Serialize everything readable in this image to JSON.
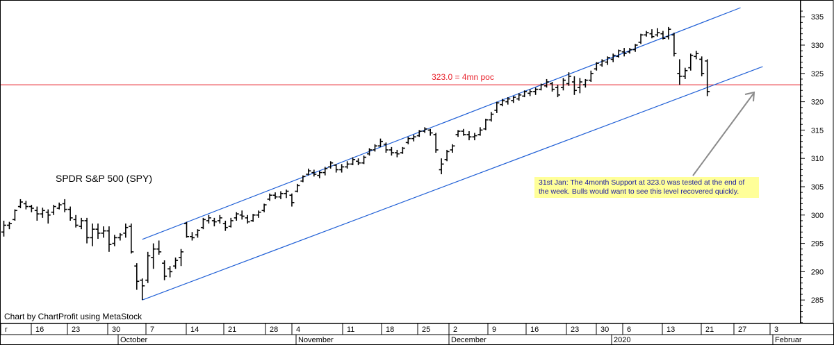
{
  "chart_data": {
    "type": "ohlc",
    "title": "SPDR S&P 500  (SPY)",
    "credit": "Chart by ChartProfit using MetaStock",
    "ylim": [
      280.5,
      337
    ],
    "y_ticks": [
      285,
      290,
      295,
      300,
      305,
      310,
      315,
      320,
      325,
      330,
      335
    ],
    "x_day_ticks": [
      "r",
      "16",
      "23",
      "30",
      "7",
      "14",
      "21",
      "28",
      "4",
      "11",
      "18",
      "25",
      "2",
      "9",
      "16",
      "23",
      "30",
      "6",
      "13",
      "21",
      "27",
      "3"
    ],
    "x_month_labels": [
      "October",
      "November",
      "December",
      "2020",
      "Februar"
    ],
    "horizontal_level": {
      "value": 323.0,
      "label": "323.0 = 4mn poc",
      "color": "#e8202a"
    },
    "channel_color": "#1f5fd6",
    "channel": {
      "upper": [
        {
          "bar": 25,
          "y": 295.7
        },
        {
          "bar": 133,
          "y": 336.6
        }
      ],
      "lower": [
        {
          "bar": 25,
          "y": 285
        },
        {
          "bar": 137,
          "y": 326.2
        }
      ]
    },
    "annotation": {
      "text_lines": [
        "31st Jan: The 4month Support at 323.0 was tested at the end of",
        "the week. Bulls would want to see this level recovered quickly."
      ],
      "background": "#ffff99",
      "text_color": "#1a1aa0"
    },
    "bars": [
      {
        "h": 299.0,
        "l": 296.2,
        "o": 297.0,
        "c": 298.2
      },
      {
        "h": 298.8,
        "l": 297.5,
        "o": 298.2,
        "c": 298.5
      },
      {
        "h": 301.0,
        "l": 299.0,
        "o": 299.2,
        "c": 300.8
      },
      {
        "h": 302.8,
        "l": 301.2,
        "o": 301.5,
        "c": 302.3
      },
      {
        "h": 302.5,
        "l": 301.0,
        "o": 302.0,
        "c": 301.5
      },
      {
        "h": 301.8,
        "l": 300.5,
        "o": 301.5,
        "c": 301.2
      },
      {
        "h": 301.5,
        "l": 299.0,
        "o": 300.8,
        "c": 300.2
      },
      {
        "h": 301.3,
        "l": 299.5,
        "o": 300.2,
        "c": 300.8
      },
      {
        "h": 301.0,
        "l": 298.5,
        "o": 300.5,
        "c": 300.0
      },
      {
        "h": 301.8,
        "l": 300.0,
        "o": 300.5,
        "c": 301.5
      },
      {
        "h": 302.2,
        "l": 301.0,
        "o": 301.2,
        "c": 301.8
      },
      {
        "h": 302.8,
        "l": 300.5,
        "o": 302.0,
        "c": 301.0
      },
      {
        "h": 301.5,
        "l": 299.0,
        "o": 301.0,
        "c": 299.5
      },
      {
        "h": 300.0,
        "l": 297.8,
        "o": 299.2,
        "c": 298.2
      },
      {
        "h": 299.5,
        "l": 297.5,
        "o": 298.0,
        "c": 299.0
      },
      {
        "h": 299.5,
        "l": 295.0,
        "o": 299.0,
        "c": 296.0
      },
      {
        "h": 298.5,
        "l": 294.5,
        "o": 296.0,
        "c": 297.5
      },
      {
        "h": 298.5,
        "l": 295.8,
        "o": 297.5,
        "c": 296.8
      },
      {
        "h": 298.0,
        "l": 296.0,
        "o": 296.8,
        "c": 297.2
      },
      {
        "h": 298.0,
        "l": 293.5,
        "o": 297.2,
        "c": 294.8
      },
      {
        "h": 296.5,
        "l": 294.5,
        "o": 295.0,
        "c": 296.0
      },
      {
        "h": 296.8,
        "l": 295.5,
        "o": 296.0,
        "c": 296.5
      },
      {
        "h": 298.5,
        "l": 296.0,
        "o": 296.8,
        "c": 297.8
      },
      {
        "h": 298.5,
        "l": 293.2,
        "o": 298.0,
        "c": 293.5
      },
      {
        "h": 291.5,
        "l": 286.8,
        "o": 291.0,
        "c": 288.3
      },
      {
        "h": 288.8,
        "l": 285.0,
        "o": 288.5,
        "c": 287.5
      },
      {
        "h": 293.5,
        "l": 288.0,
        "o": 288.5,
        "c": 292.8
      },
      {
        "h": 295.0,
        "l": 290.5,
        "o": 292.5,
        "c": 294.0
      },
      {
        "h": 295.5,
        "l": 293.0,
        "o": 294.0,
        "c": 293.5
      },
      {
        "h": 292.0,
        "l": 288.5,
        "o": 291.5,
        "c": 289.2
      },
      {
        "h": 291.0,
        "l": 289.0,
        "o": 290.5,
        "c": 290.0
      },
      {
        "h": 292.5,
        "l": 290.5,
        "o": 291.0,
        "c": 292.0
      },
      {
        "h": 294.0,
        "l": 291.0,
        "o": 292.5,
        "c": 293.5
      },
      {
        "h": 298.8,
        "l": 296.0,
        "o": 298.5,
        "c": 296.2
      },
      {
        "h": 297.0,
        "l": 295.5,
        "o": 296.2,
        "c": 296.0
      },
      {
        "h": 297.5,
        "l": 296.0,
        "o": 296.5,
        "c": 297.3
      },
      {
        "h": 299.5,
        "l": 297.5,
        "o": 297.8,
        "c": 299.2
      },
      {
        "h": 300.0,
        "l": 298.5,
        "o": 299.0,
        "c": 299.5
      },
      {
        "h": 299.5,
        "l": 298.0,
        "o": 299.0,
        "c": 298.8
      },
      {
        "h": 300.0,
        "l": 298.5,
        "o": 299.0,
        "c": 299.5
      },
      {
        "h": 299.0,
        "l": 297.2,
        "o": 298.5,
        "c": 297.8
      },
      {
        "h": 299.5,
        "l": 297.8,
        "o": 298.0,
        "c": 299.0
      },
      {
        "h": 300.5,
        "l": 299.0,
        "o": 299.5,
        "c": 300.2
      },
      {
        "h": 300.8,
        "l": 299.2,
        "o": 300.0,
        "c": 299.8
      },
      {
        "h": 300.0,
        "l": 298.5,
        "o": 299.5,
        "c": 298.8
      },
      {
        "h": 300.2,
        "l": 298.8,
        "o": 299.0,
        "c": 300.0
      },
      {
        "h": 300.8,
        "l": 299.5,
        "o": 300.0,
        "c": 300.5
      },
      {
        "h": 302.0,
        "l": 300.5,
        "o": 300.8,
        "c": 301.8
      },
      {
        "h": 303.8,
        "l": 302.5,
        "o": 302.8,
        "c": 303.5
      },
      {
        "h": 304.0,
        "l": 302.8,
        "o": 303.5,
        "c": 303.2
      },
      {
        "h": 304.2,
        "l": 302.8,
        "o": 303.2,
        "c": 303.8
      },
      {
        "h": 304.5,
        "l": 303.0,
        "o": 303.8,
        "c": 304.2
      },
      {
        "h": 303.8,
        "l": 301.5,
        "o": 303.5,
        "c": 302.2
      },
      {
        "h": 305.5,
        "l": 304.0,
        "o": 304.2,
        "c": 305.2
      },
      {
        "h": 307.0,
        "l": 305.8,
        "o": 306.0,
        "c": 306.8
      },
      {
        "h": 308.2,
        "l": 307.0,
        "o": 307.2,
        "c": 307.8
      },
      {
        "h": 308.0,
        "l": 306.8,
        "o": 307.5,
        "c": 307.2
      },
      {
        "h": 307.8,
        "l": 306.5,
        "o": 307.0,
        "c": 307.5
      },
      {
        "h": 308.5,
        "l": 307.0,
        "o": 307.5,
        "c": 308.2
      },
      {
        "h": 309.5,
        "l": 308.2,
        "o": 308.5,
        "c": 309.2
      },
      {
        "h": 309.0,
        "l": 307.5,
        "o": 308.8,
        "c": 308.0
      },
      {
        "h": 309.0,
        "l": 307.5,
        "o": 308.0,
        "c": 308.5
      },
      {
        "h": 309.5,
        "l": 308.2,
        "o": 308.5,
        "c": 309.0
      },
      {
        "h": 310.2,
        "l": 308.8,
        "o": 309.0,
        "c": 309.8
      },
      {
        "h": 310.0,
        "l": 308.8,
        "o": 309.5,
        "c": 309.2
      },
      {
        "h": 310.5,
        "l": 309.0,
        "o": 309.2,
        "c": 310.2
      },
      {
        "h": 311.8,
        "l": 310.5,
        "o": 310.8,
        "c": 311.5
      },
      {
        "h": 312.5,
        "l": 311.2,
        "o": 311.5,
        "c": 312.2
      },
      {
        "h": 313.5,
        "l": 312.0,
        "o": 312.2,
        "c": 313.0
      },
      {
        "h": 312.8,
        "l": 311.0,
        "o": 312.5,
        "c": 311.5
      },
      {
        "h": 312.0,
        "l": 310.5,
        "o": 311.5,
        "c": 311.0
      },
      {
        "h": 311.5,
        "l": 310.2,
        "o": 311.0,
        "c": 310.8
      },
      {
        "h": 312.0,
        "l": 310.8,
        "o": 311.0,
        "c": 311.8
      },
      {
        "h": 313.8,
        "l": 312.5,
        "o": 312.8,
        "c": 313.5
      },
      {
        "h": 314.2,
        "l": 313.0,
        "o": 313.5,
        "c": 313.8
      },
      {
        "h": 315.0,
        "l": 313.8,
        "o": 314.0,
        "c": 314.8
      },
      {
        "h": 315.5,
        "l": 314.5,
        "o": 314.8,
        "c": 315.2
      },
      {
        "h": 315.2,
        "l": 314.0,
        "o": 315.0,
        "c": 314.5
      },
      {
        "h": 314.5,
        "l": 311.0,
        "o": 314.2,
        "c": 311.5
      },
      {
        "h": 310.0,
        "l": 307.2,
        "o": 308.0,
        "c": 309.0
      },
      {
        "h": 311.5,
        "l": 309.5,
        "o": 309.8,
        "c": 311.2
      },
      {
        "h": 312.5,
        "l": 311.0,
        "o": 311.5,
        "c": 312.2
      },
      {
        "h": 315.0,
        "l": 313.8,
        "o": 314.2,
        "c": 314.8
      },
      {
        "h": 315.2,
        "l": 314.0,
        "o": 314.8,
        "c": 314.2
      },
      {
        "h": 314.8,
        "l": 313.2,
        "o": 314.2,
        "c": 313.8
      },
      {
        "h": 314.5,
        "l": 313.2,
        "o": 313.8,
        "c": 314.0
      },
      {
        "h": 315.5,
        "l": 314.0,
        "o": 314.2,
        "c": 315.0
      },
      {
        "h": 317.0,
        "l": 315.0,
        "o": 315.2,
        "c": 316.8
      },
      {
        "h": 318.2,
        "l": 316.5,
        "o": 316.8,
        "c": 317.8
      },
      {
        "h": 320.0,
        "l": 318.0,
        "o": 318.5,
        "c": 319.8
      },
      {
        "h": 320.5,
        "l": 319.2,
        "o": 319.5,
        "c": 320.2
      },
      {
        "h": 320.8,
        "l": 319.5,
        "o": 320.0,
        "c": 320.5
      },
      {
        "h": 321.0,
        "l": 319.8,
        "o": 320.2,
        "c": 320.8
      },
      {
        "h": 321.5,
        "l": 320.2,
        "o": 320.5,
        "c": 321.2
      },
      {
        "h": 322.0,
        "l": 320.8,
        "o": 321.0,
        "c": 321.8
      },
      {
        "h": 322.2,
        "l": 321.0,
        "o": 321.5,
        "c": 321.8
      },
      {
        "h": 322.5,
        "l": 321.2,
        "o": 321.8,
        "c": 322.2
      },
      {
        "h": 323.2,
        "l": 322.0,
        "o": 322.2,
        "c": 323.0
      },
      {
        "h": 324.0,
        "l": 322.5,
        "o": 322.8,
        "c": 323.5
      },
      {
        "h": 323.5,
        "l": 321.8,
        "o": 323.2,
        "c": 322.2
      },
      {
        "h": 323.0,
        "l": 320.8,
        "o": 322.5,
        "c": 321.2
      },
      {
        "h": 324.2,
        "l": 322.0,
        "o": 322.5,
        "c": 323.8
      },
      {
        "h": 325.2,
        "l": 322.8,
        "o": 323.2,
        "c": 324.5
      },
      {
        "h": 324.5,
        "l": 321.2,
        "o": 323.5,
        "c": 322.0
      },
      {
        "h": 324.2,
        "l": 321.5,
        "o": 322.5,
        "c": 323.5
      },
      {
        "h": 324.0,
        "l": 322.5,
        "o": 323.0,
        "c": 323.8
      },
      {
        "h": 325.5,
        "l": 323.5,
        "o": 323.8,
        "c": 325.0
      },
      {
        "h": 327.0,
        "l": 325.5,
        "o": 325.8,
        "c": 326.8
      },
      {
        "h": 327.5,
        "l": 326.2,
        "o": 326.5,
        "c": 327.2
      },
      {
        "h": 328.0,
        "l": 326.5,
        "o": 327.0,
        "c": 327.8
      },
      {
        "h": 328.5,
        "l": 327.0,
        "o": 327.5,
        "c": 328.2
      },
      {
        "h": 329.2,
        "l": 327.8,
        "o": 328.0,
        "c": 329.0
      },
      {
        "h": 329.5,
        "l": 328.0,
        "o": 328.8,
        "c": 328.5
      },
      {
        "h": 329.5,
        "l": 328.5,
        "o": 328.8,
        "c": 329.2
      },
      {
        "h": 330.2,
        "l": 328.8,
        "o": 329.2,
        "c": 330.0
      },
      {
        "h": 332.0,
        "l": 330.2,
        "o": 330.5,
        "c": 331.8
      },
      {
        "h": 332.5,
        "l": 331.5,
        "o": 331.8,
        "c": 332.2
      },
      {
        "h": 332.8,
        "l": 331.2,
        "o": 332.0,
        "c": 331.5
      },
      {
        "h": 333.0,
        "l": 331.5,
        "o": 331.8,
        "c": 332.2
      },
      {
        "h": 332.5,
        "l": 331.0,
        "o": 332.0,
        "c": 331.2
      },
      {
        "h": 333.2,
        "l": 331.0,
        "o": 331.5,
        "c": 332.8
      },
      {
        "h": 332.2,
        "l": 328.0,
        "o": 331.8,
        "c": 328.5
      },
      {
        "h": 327.5,
        "l": 323.0,
        "o": 325.0,
        "c": 324.5
      },
      {
        "h": 326.0,
        "l": 324.0,
        "o": 324.5,
        "c": 325.5
      },
      {
        "h": 328.5,
        "l": 325.5,
        "o": 326.0,
        "c": 328.2
      },
      {
        "h": 329.0,
        "l": 327.5,
        "o": 328.0,
        "c": 328.5
      },
      {
        "h": 328.0,
        "l": 324.5,
        "o": 327.5,
        "c": 325.0
      },
      {
        "h": 327.5,
        "l": 321.0,
        "o": 327.2,
        "c": 321.8
      }
    ]
  }
}
